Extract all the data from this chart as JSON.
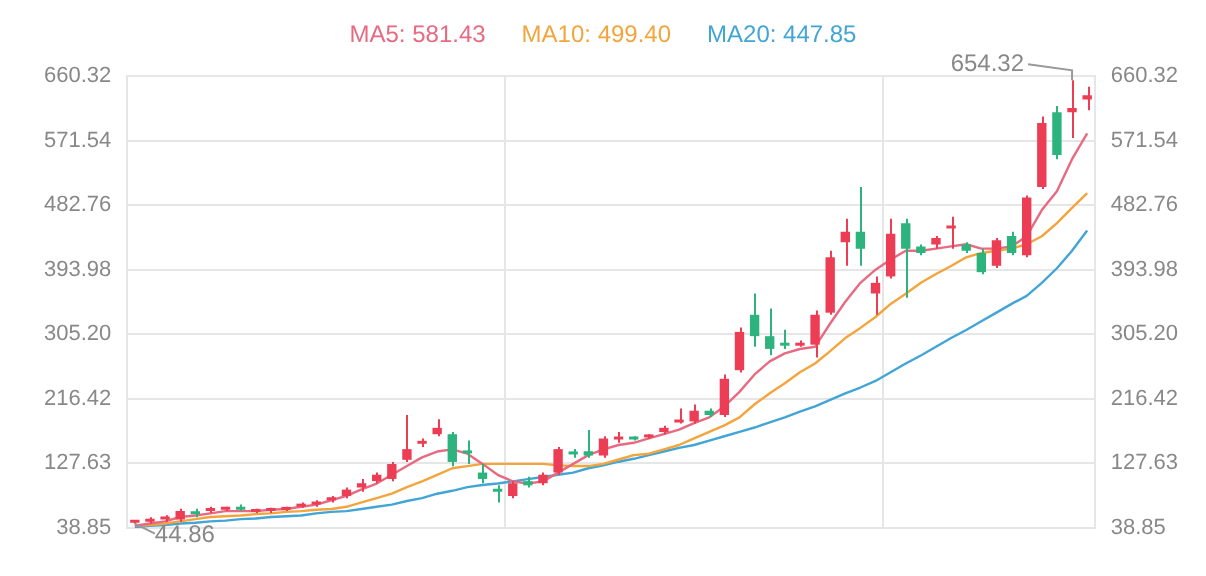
{
  "chart_data": {
    "type": "candlestick",
    "categories": [
      null,
      null,
      null,
      null,
      null,
      null,
      null,
      null,
      null,
      null,
      null,
      null,
      null,
      null,
      null,
      null,
      null,
      null,
      null,
      null,
      null,
      null,
      null,
      null,
      null,
      null,
      null,
      null,
      null,
      null,
      null,
      null,
      null,
      null,
      null,
      null,
      null,
      null,
      null,
      null,
      null,
      null,
      null,
      null,
      null,
      null,
      null,
      null,
      null,
      null,
      null,
      null,
      null,
      null,
      null,
      null,
      null,
      null,
      null,
      null,
      null,
      null,
      null,
      null
    ],
    "ohlc": [
      [
        46,
        50,
        44.86,
        48
      ],
      [
        47.6,
        53.5,
        45,
        50.6
      ],
      [
        50.6,
        56.4,
        47.6,
        53.5
      ],
      [
        50.6,
        65.2,
        47.6,
        62.3
      ],
      [
        60.8,
        65.2,
        53.5,
        57.9
      ],
      [
        62.3,
        68.2,
        59.4,
        63.8
      ],
      [
        63.8,
        68.2,
        62.3,
        66.7
      ],
      [
        66.7,
        71.1,
        62.3,
        63.8
      ],
      [
        61,
        65.2,
        59.4,
        63.8
      ],
      [
        62.3,
        66.7,
        59.4,
        63.8
      ],
      [
        63.8,
        68.2,
        62.3,
        66.7
      ],
      [
        68.2,
        74,
        66.7,
        71.1
      ],
      [
        71.1,
        77,
        68.2,
        74
      ],
      [
        77,
        82.8,
        74,
        79.9
      ],
      [
        82.8,
        94.5,
        79.9,
        91.6
      ],
      [
        94.5,
        106.3,
        88.7,
        100.4
      ],
      [
        103.3,
        115.1,
        100.4,
        112.1
      ],
      [
        106.3,
        129.7,
        103.3,
        126.8
      ],
      [
        132.6,
        194.2,
        129.7,
        147.3
      ],
      [
        154.6,
        161.9,
        150.2,
        157.5
      ],
      [
        167.8,
        188.3,
        164.9,
        176.6
      ],
      [
        167.8,
        170.7,
        123.9,
        129.7
      ],
      [
        144.4,
        159,
        126.8,
        141.4
      ],
      [
        115.1,
        126.8,
        100.4,
        106.3
      ],
      [
        91.6,
        97.5,
        74,
        88.7
      ],
      [
        82.8,
        103.3,
        79.9,
        100.4
      ],
      [
        103.3,
        109.2,
        94.5,
        97.5
      ],
      [
        100.4,
        115.1,
        97.5,
        112.1
      ],
      [
        115.1,
        150.2,
        112.1,
        147.3
      ],
      [
        142.9,
        147.3,
        135.6,
        140
      ],
      [
        144.4,
        173.7,
        135.6,
        138.5
      ],
      [
        138.5,
        164.9,
        135.6,
        161.9
      ],
      [
        160.5,
        170.7,
        156.1,
        163.4
      ],
      [
        163.4,
        164.9,
        159,
        160.5
      ],
      [
        163.4,
        167.8,
        161.9,
        166.3
      ],
      [
        170.7,
        179.5,
        167.8,
        176.6
      ],
      [
        183.9,
        203,
        182.5,
        186.9
      ],
      [
        185.4,
        208.8,
        182.5,
        200.1
      ],
      [
        200.1,
        203,
        191.3,
        194.2
      ],
      [
        194.2,
        249.9,
        191.3,
        244
      ],
      [
        255.8,
        314.4,
        252.8,
        308.5
      ],
      [
        332,
        361.3,
        288,
        302.6
      ],
      [
        302.6,
        340.8,
        276.3,
        285.1
      ],
      [
        292.4,
        311.4,
        285.1,
        289.5
      ],
      [
        289.5,
        296.8,
        288,
        292.4
      ],
      [
        290.9,
        337.8,
        273.3,
        332
      ],
      [
        334.9,
        419.9,
        332,
        411.1
      ],
      [
        431.6,
        463.9,
        399.4,
        446.3
      ],
      [
        446.3,
        507.8,
        399.4,
        422.8
      ],
      [
        361.3,
        384.7,
        332,
        375.9
      ],
      [
        384.7,
        463.9,
        381.8,
        443.3
      ],
      [
        458,
        463.9,
        355.4,
        422.8
      ],
      [
        425.8,
        428.7,
        414,
        417
      ],
      [
        428.7,
        440.4,
        422.8,
        437.5
      ],
      [
        450.7,
        466.8,
        422.8,
        453.6
      ],
      [
        428.7,
        431.6,
        417,
        419.9
      ],
      [
        417,
        422.8,
        387.6,
        390.6
      ],
      [
        399.4,
        437.5,
        396.4,
        434.5
      ],
      [
        440.4,
        446.3,
        414,
        417
      ],
      [
        414,
        496.1,
        411.1,
        493.2
      ],
      [
        507.8,
        604.5,
        504.9,
        595.7
      ],
      [
        610.4,
        619.2,
        545.9,
        551.8
      ],
      [
        610.4,
        654.32,
        575.2,
        616.3
      ],
      [
        628,
        645.6,
        613.3,
        633.9
      ]
    ],
    "colors": [
      "#ec3d55",
      "#ec3d55",
      "#ec3d55",
      "#ec3d55",
      "#2db37d",
      "#ec3d55",
      "#ec3d55",
      "#2db37d",
      "#ec3d55",
      "#ec3d55",
      "#ec3d55",
      "#ec3d55",
      "#ec3d55",
      "#ec3d55",
      "#ec3d55",
      "#ec3d55",
      "#ec3d55",
      "#ec3d55",
      "#ec3d55",
      "#ec3d55",
      "#ec3d55",
      "#2db37d",
      "#2db37d",
      "#2db37d",
      "#2db37d",
      "#ec3d55",
      "#2db37d",
      "#ec3d55",
      "#ec3d55",
      "#2db37d",
      "#2db37d",
      "#ec3d55",
      "#ec3d55",
      "#2db37d",
      "#ec3d55",
      "#ec3d55",
      "#ec3d55",
      "#ec3d55",
      "#2db37d",
      "#ec3d55",
      "#ec3d55",
      "#2db37d",
      "#2db37d",
      "#2db37d",
      "#ec3d55",
      "#ec3d55",
      "#ec3d55",
      "#ec3d55",
      "#2db37d",
      "#ec3d55",
      "#ec3d55",
      "#2db37d",
      "#2db37d",
      "#ec3d55",
      "#ec3d55",
      "#2db37d",
      "#2db37d",
      "#ec3d55",
      "#2db37d",
      "#ec3d55",
      "#ec3d55",
      "#2db37d",
      "#ec3d55",
      "#ec3d55"
    ],
    "series": [
      {
        "name": "MA5: 581.43",
        "type": "line",
        "color": "#e96a80",
        "values": [
          42,
          45,
          48,
          54,
          56,
          59,
          62,
          62,
          62,
          64,
          65,
          68,
          71,
          77,
          83,
          92,
          100,
          112,
          124,
          136,
          144,
          147,
          141,
          127,
          112,
          103,
          100,
          103,
          115,
          127,
          139,
          147,
          153,
          156,
          162,
          168,
          174,
          183,
          191,
          206,
          226,
          250,
          268,
          279,
          285,
          288,
          320,
          350,
          376,
          394,
          408,
          420,
          420,
          423,
          426,
          429,
          423,
          423,
          426,
          440,
          476,
          502,
          546,
          581.43
        ]
      },
      {
        "name": "MA10: 499.40",
        "type": "line",
        "color": "#f3a53c",
        "values": [
          42,
          43,
          45,
          48,
          51,
          54,
          55,
          56,
          58,
          59,
          61,
          62,
          64,
          65,
          68,
          74,
          80,
          86,
          95,
          103,
          112,
          121,
          124,
          127,
          127,
          127,
          127,
          127,
          125,
          124,
          124,
          127,
          133,
          139,
          141,
          147,
          153,
          162,
          171,
          180,
          191,
          209,
          224,
          238,
          253,
          265,
          282,
          300,
          314,
          329,
          347,
          361,
          376,
          388,
          399,
          411,
          417,
          420,
          423,
          429,
          440,
          458,
          479,
          499.4
        ]
      },
      {
        "name": "MA20: 447.85",
        "type": "line",
        "color": "#42a5d6",
        "values": [
          40,
          42,
          43,
          45,
          46,
          48,
          49,
          51,
          52,
          54,
          55,
          56,
          59,
          61,
          62,
          65,
          68,
          71,
          76,
          80,
          86,
          90,
          95,
          98,
          100,
          103,
          106,
          109,
          112,
          115,
          121,
          125,
          130,
          134,
          139,
          144,
          149,
          153,
          159,
          165,
          171,
          177,
          184,
          191,
          199,
          206,
          215,
          224,
          232,
          241,
          253,
          265,
          276,
          288,
          300,
          311,
          323,
          335,
          347,
          358,
          376,
          396,
          420,
          447.85
        ]
      }
    ],
    "ylim": [
      38.85,
      660.32
    ],
    "yticks": [
      38.85,
      127.63,
      216.42,
      {
        "value": 305.2,
        "label": "305.20"
      },
      393.98,
      482.76,
      571.54,
      660.32
    ],
    "y2lim": [
      38.85,
      660.32
    ],
    "y2ticks": [
      38.85,
      127.63,
      216.42,
      {
        "value": 305.2,
        "label": "305.20"
      },
      393.98,
      482.76,
      571.54,
      660.32
    ],
    "annotations": [
      "654.32",
      "44.86"
    ],
    "grid": true,
    "legend": "top"
  }
}
